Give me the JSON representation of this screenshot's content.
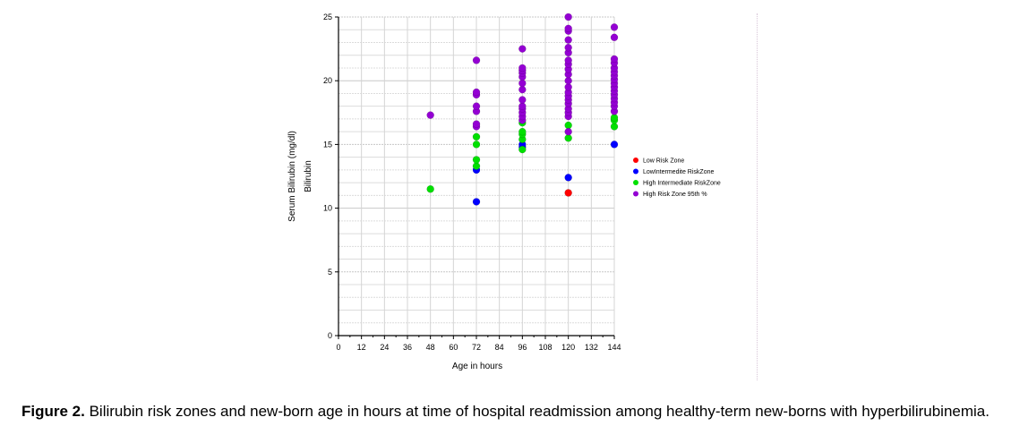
{
  "chart_data": {
    "type": "scatter",
    "title": "",
    "xlabel": "Age in hours",
    "ylabel": "Serum Bilirubin (mg/dl)",
    "ylabel_secondary": "Bilirubin",
    "xlim": [
      0,
      144
    ],
    "ylim": [
      0,
      25
    ],
    "xticks": [
      0,
      12,
      24,
      36,
      48,
      60,
      72,
      84,
      96,
      108,
      120,
      132,
      144
    ],
    "yticks": [
      0,
      5,
      10,
      15,
      20,
      25
    ],
    "grid": true,
    "legend_position": "right",
    "series": [
      {
        "name": "Low Risk Zone",
        "color": "#ff0000",
        "points": [
          [
            120,
            11.2
          ]
        ]
      },
      {
        "name": "LowIntermedite RiskZone",
        "color": "#0000ff",
        "points": [
          [
            72,
            10.5
          ],
          [
            72,
            13.0
          ],
          [
            96,
            14.8
          ],
          [
            96,
            15.0
          ],
          [
            120,
            12.4
          ],
          [
            144,
            15.0
          ]
        ]
      },
      {
        "name": "High Intermediate RiskZone",
        "color": "#00e000",
        "points": [
          [
            48,
            11.5
          ],
          [
            72,
            13.3
          ],
          [
            72,
            13.8
          ],
          [
            72,
            15.0
          ],
          [
            72,
            15.6
          ],
          [
            96,
            14.6
          ],
          [
            96,
            15.4
          ],
          [
            96,
            15.8
          ],
          [
            96,
            16.0
          ],
          [
            96,
            16.7
          ],
          [
            120,
            15.5
          ],
          [
            120,
            16.5
          ],
          [
            144,
            16.4
          ],
          [
            144,
            16.9
          ],
          [
            144,
            17.1
          ]
        ]
      },
      {
        "name": "High Risk Zone 95th %",
        "color": "#9400d3",
        "points": [
          [
            48,
            17.3
          ],
          [
            72,
            16.4
          ],
          [
            72,
            16.6
          ],
          [
            72,
            17.6
          ],
          [
            72,
            18.0
          ],
          [
            72,
            18.9
          ],
          [
            72,
            19.1
          ],
          [
            72,
            21.6
          ],
          [
            96,
            16.9
          ],
          [
            96,
            17.2
          ],
          [
            96,
            17.5
          ],
          [
            96,
            17.8
          ],
          [
            96,
            18.0
          ],
          [
            96,
            18.5
          ],
          [
            96,
            19.3
          ],
          [
            96,
            19.8
          ],
          [
            96,
            20.3
          ],
          [
            96,
            20.6
          ],
          [
            96,
            20.8
          ],
          [
            96,
            21.0
          ],
          [
            96,
            22.5
          ],
          [
            120,
            16.0
          ],
          [
            120,
            17.2
          ],
          [
            120,
            17.5
          ],
          [
            120,
            17.8
          ],
          [
            120,
            18.2
          ],
          [
            120,
            18.5
          ],
          [
            120,
            18.8
          ],
          [
            120,
            19.1
          ],
          [
            120,
            19.5
          ],
          [
            120,
            20.0
          ],
          [
            120,
            20.5
          ],
          [
            120,
            20.9
          ],
          [
            120,
            21.3
          ],
          [
            120,
            21.6
          ],
          [
            120,
            22.2
          ],
          [
            120,
            22.6
          ],
          [
            120,
            23.2
          ],
          [
            120,
            23.9
          ],
          [
            120,
            24.1
          ],
          [
            120,
            25.0
          ],
          [
            144,
            17.6
          ],
          [
            144,
            18.0
          ],
          [
            144,
            18.3
          ],
          [
            144,
            18.6
          ],
          [
            144,
            18.9
          ],
          [
            144,
            19.2
          ],
          [
            144,
            19.5
          ],
          [
            144,
            19.8
          ],
          [
            144,
            20.1
          ],
          [
            144,
            20.4
          ],
          [
            144,
            20.7
          ],
          [
            144,
            21.0
          ],
          [
            144,
            21.4
          ],
          [
            144,
            21.7
          ],
          [
            144,
            23.4
          ],
          [
            144,
            24.2
          ]
        ]
      }
    ]
  },
  "caption": {
    "label": "Figure 2.",
    "text": " Bilirubin risk zones and new-born age in hours at time of hospital readmission among healthy-term new-borns with hyperbilirubinemia."
  }
}
